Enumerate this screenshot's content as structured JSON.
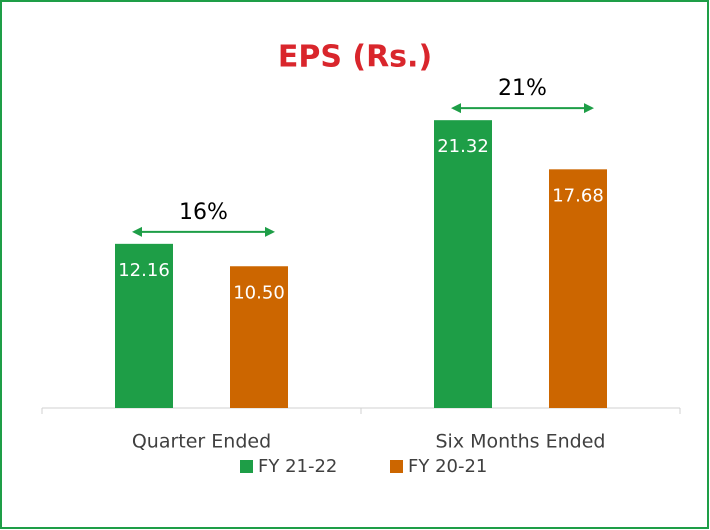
{
  "chart_data": {
    "type": "bar",
    "title": "EPS (Rs.)",
    "categories": [
      "Quarter Ended",
      "Six Months Ended"
    ],
    "series": [
      {
        "name": "FY 21-22",
        "color": "#1e9e47",
        "values": [
          12.16,
          21.32
        ]
      },
      {
        "name": "FY 20-21",
        "color": "#cc6600",
        "values": [
          10.5,
          17.68
        ],
        "value_labels": [
          "10.50",
          "17.68"
        ]
      }
    ],
    "annotations": [
      "16%",
      "21%"
    ],
    "annotation_color": "#1e9e47",
    "title_color": "#d9262c",
    "legend": "bottom"
  }
}
